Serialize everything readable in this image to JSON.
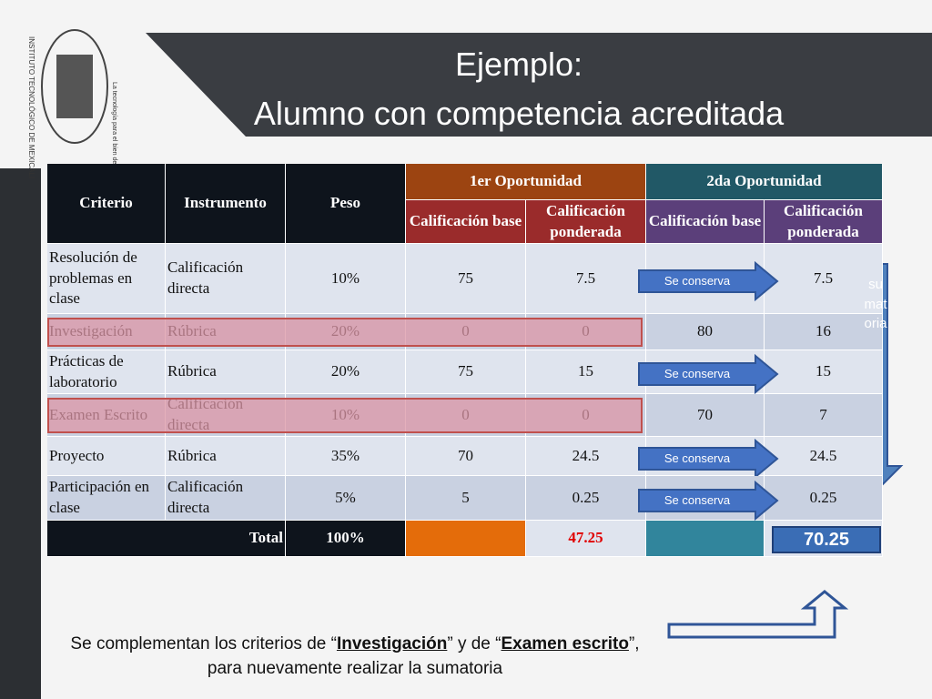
{
  "header": {
    "title_line1": "Ejemplo:",
    "title_line2": "Alumno con competencia acreditada"
  },
  "logo": {
    "name": "INSTITUTO TECNOLÓGICO DE MEXICALI",
    "motto": "La tecnología para el bien de"
  },
  "table": {
    "headers": [
      "Criterio",
      "Instrumento",
      "Peso"
    ],
    "groups": [
      "1er Oportunidad",
      "2da Oportunidad"
    ],
    "subheaders": [
      "Calificación base",
      "Calificación ponderada",
      "Calificación base",
      "Calificación ponderada"
    ],
    "rows": [
      {
        "criterio": "Resolución de problemas en clase",
        "instrumento": "Calificación directa",
        "peso": "10%",
        "base1": 75,
        "pond1": 7.5,
        "arrow": "Se conserva",
        "pond2": 7.5
      },
      {
        "criterio": "Investigación",
        "instrumento": "Rúbrica",
        "peso": "20%",
        "base1": 0,
        "pond1": 0,
        "base2": 80,
        "pond2": 16
      },
      {
        "criterio": "Prácticas de laboratorio",
        "instrumento": "Rúbrica",
        "peso": "20%",
        "base1": 75,
        "pond1": 15,
        "arrow": "Se conserva",
        "pond2": 15
      },
      {
        "criterio": "Examen Escrito",
        "instrumento": "Calificación directa",
        "peso": "10%",
        "base1": 0,
        "pond1": 0,
        "base2": 70,
        "pond2": 7
      },
      {
        "criterio": "Proyecto",
        "instrumento": "Rúbrica",
        "peso": "35%",
        "base1": 70,
        "pond1": 24.5,
        "arrow": "Se conserva",
        "pond2": 24.5
      },
      {
        "criterio": "Participación en clase",
        "instrumento": "Calificación directa",
        "peso": "5%",
        "base1": 5,
        "pond1": 0.25,
        "arrow": "Se conserva",
        "pond2": 0.25
      }
    ],
    "total": {
      "label": "Total",
      "peso": "100%",
      "pond1": 47.25,
      "pond2": 70.25
    }
  },
  "side_label": "sumatoria",
  "footer": {
    "part1": "Se complementan los criterios de “",
    "link1": "Investigación",
    "part2": "” y de “",
    "link2": "Examen escrito",
    "part3": "”, para nuevamente realizar la sumatoria"
  }
}
